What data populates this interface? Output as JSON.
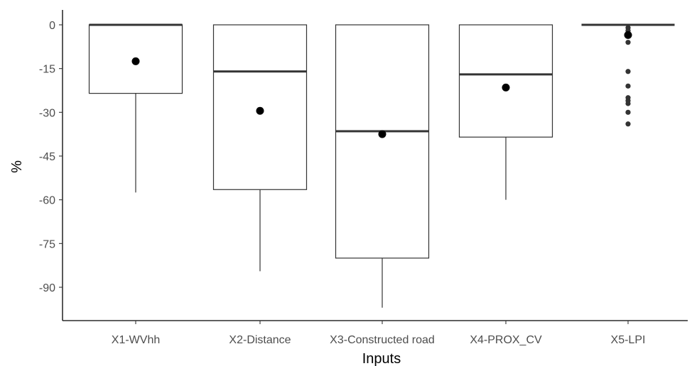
{
  "chart_data": {
    "type": "boxplot",
    "xlabel": "Inputs",
    "ylabel": "%",
    "ylim": [
      -101,
      4
    ],
    "yticks": [
      0,
      -15,
      -30,
      -45,
      -60,
      -75,
      -90
    ],
    "ytick_labels": [
      "0",
      "-15",
      "-30",
      "-45",
      "-60",
      "-75",
      "-90"
    ],
    "categories": [
      "X1-WVhh",
      "X2-Distance",
      "X3-Constructed road",
      "X4-PROX_CV",
      "X5-LPI"
    ],
    "boxes": [
      {
        "category": "X1-WVhh",
        "whisker_low": -57.5,
        "q1": -23.5,
        "median": 0,
        "q3": 0,
        "whisker_high": 0,
        "mean": -12.5,
        "outliers": []
      },
      {
        "category": "X2-Distance",
        "whisker_low": -84.5,
        "q1": -56.5,
        "median": -16,
        "q3": 0,
        "whisker_high": 0,
        "mean": -29.5,
        "outliers": []
      },
      {
        "category": "X3-Constructed road",
        "whisker_low": -97,
        "q1": -80,
        "median": -36.5,
        "q3": 0,
        "whisker_high": 0,
        "mean": -37.5,
        "outliers": []
      },
      {
        "category": "X4-PROX_CV",
        "whisker_low": -60,
        "q1": -38.5,
        "median": -17,
        "q3": 0,
        "whisker_high": 0,
        "mean": -21.5,
        "outliers": []
      },
      {
        "category": "X5-LPI",
        "whisker_low": 0,
        "q1": 0,
        "median": 0,
        "q3": 0,
        "whisker_high": 0,
        "mean": -3.5,
        "outliers": [
          -1,
          -2,
          -3,
          -6,
          -16,
          -21,
          -25,
          -26,
          -27,
          -30,
          -34
        ]
      }
    ],
    "grid": false,
    "legend": "none"
  }
}
